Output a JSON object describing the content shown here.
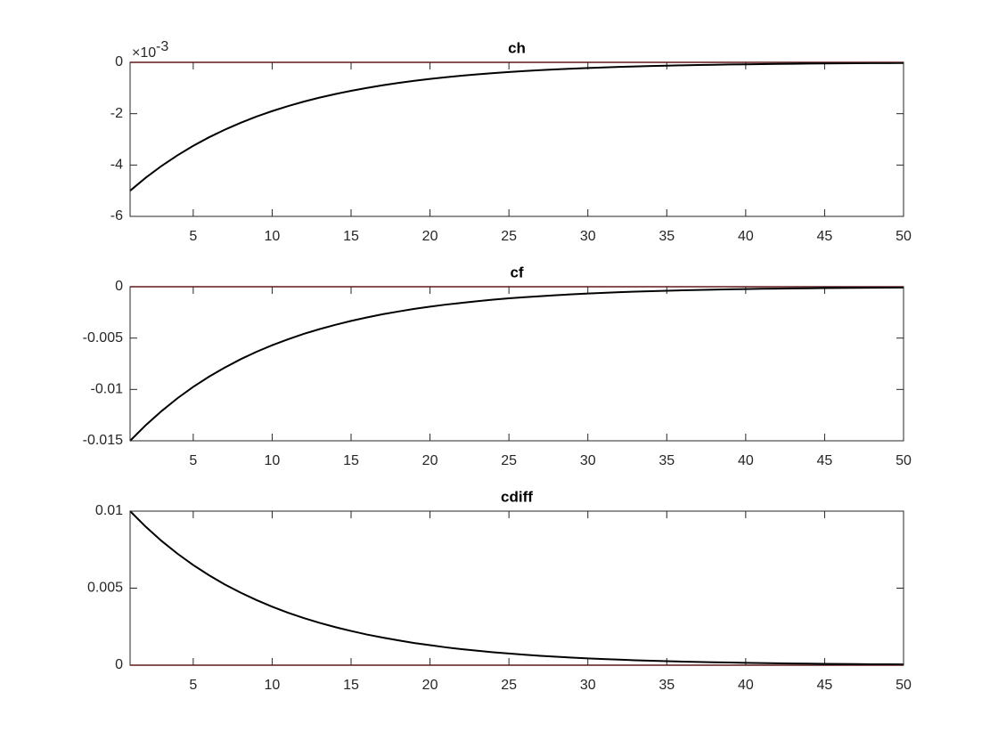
{
  "chart_data": [
    {
      "type": "line",
      "title": "ch",
      "y_multiplier_base": "×10",
      "y_multiplier_exponent": "-3",
      "x": [
        1,
        2,
        3,
        4,
        5,
        6,
        7,
        8,
        9,
        10,
        11,
        12,
        13,
        14,
        15,
        16,
        17,
        18,
        19,
        20,
        21,
        22,
        23,
        24,
        25,
        26,
        27,
        28,
        29,
        30,
        31,
        32,
        33,
        34,
        35,
        36,
        37,
        38,
        39,
        40,
        41,
        42,
        43,
        44,
        45,
        46,
        47,
        48,
        49,
        50
      ],
      "series": [
        {
          "color": "#000000",
          "values": [
            -5,
            -4.49,
            -4.032,
            -3.621,
            -3.252,
            -2.92,
            -2.622,
            -2.355,
            -2.115,
            -1.899,
            -1.705,
            -1.531,
            -1.375,
            -1.235,
            -1.109,
            -0.996,
            -0.894,
            -0.803,
            -0.721,
            -0.648,
            -0.582,
            -0.522,
            -0.469,
            -0.421,
            -0.378,
            -0.34,
            -0.305,
            -0.274,
            -0.246,
            -0.221,
            -0.199,
            -0.178,
            -0.16,
            -0.144,
            -0.129,
            -0.116,
            -0.104,
            -0.094,
            -0.084,
            -0.076,
            -0.068,
            -0.061,
            -0.055,
            -0.049,
            -0.044,
            -0.04,
            -0.036,
            -0.032,
            -0.029,
            -0.026
          ]
        }
      ],
      "reference_line": 0,
      "reference_color": "#cc0000",
      "xlim": [
        1,
        50
      ],
      "xticks": [
        5,
        10,
        15,
        20,
        25,
        30,
        35,
        40,
        45,
        50
      ],
      "ylim": [
        -6,
        0
      ],
      "yticks": [
        -6,
        -4,
        -2,
        0
      ]
    },
    {
      "type": "line",
      "title": "cf",
      "x": [
        1,
        2,
        3,
        4,
        5,
        6,
        7,
        8,
        9,
        10,
        11,
        12,
        13,
        14,
        15,
        16,
        17,
        18,
        19,
        20,
        21,
        22,
        23,
        24,
        25,
        26,
        27,
        28,
        29,
        30,
        31,
        32,
        33,
        34,
        35,
        36,
        37,
        38,
        39,
        40,
        41,
        42,
        43,
        44,
        45,
        46,
        47,
        48,
        49,
        50
      ],
      "series": [
        {
          "color": "#000000",
          "values": [
            -0.015,
            -0.01347,
            -0.0121,
            -0.01086,
            -0.00975,
            -0.00876,
            -0.00787,
            -0.00706,
            -0.00634,
            -0.0057,
            -0.00512,
            -0.00459,
            -0.00413,
            -0.00371,
            -0.00333,
            -0.00299,
            -0.00268,
            -0.00241,
            -0.00216,
            -0.00194,
            -0.00174,
            -0.00157,
            -0.00141,
            -0.00126,
            -0.00113,
            -0.00102,
            -0.00092,
            -0.00082,
            -0.00074,
            -0.00066,
            -0.0006,
            -0.00053,
            -0.00048,
            -0.00043,
            -0.00039,
            -0.00035,
            -0.00031,
            -0.00028,
            -0.00025,
            -0.00023,
            -0.0002,
            -0.00018,
            -0.00016,
            -0.00015,
            -0.00013,
            -0.00012,
            -0.00011,
            -0.0001,
            -9e-05,
            -8e-05
          ]
        }
      ],
      "reference_line": 0,
      "reference_color": "#cc0000",
      "xlim": [
        1,
        50
      ],
      "xticks": [
        5,
        10,
        15,
        20,
        25,
        30,
        35,
        40,
        45,
        50
      ],
      "ylim": [
        -0.015,
        0
      ],
      "yticks": [
        -0.015,
        -0.01,
        -0.005,
        0
      ]
    },
    {
      "type": "line",
      "title": "cdiff",
      "x": [
        1,
        2,
        3,
        4,
        5,
        6,
        7,
        8,
        9,
        10,
        11,
        12,
        13,
        14,
        15,
        16,
        17,
        18,
        19,
        20,
        21,
        22,
        23,
        24,
        25,
        26,
        27,
        28,
        29,
        30,
        31,
        32,
        33,
        34,
        35,
        36,
        37,
        38,
        39,
        40,
        41,
        42,
        43,
        44,
        45,
        46,
        47,
        48,
        49,
        50
      ],
      "series": [
        {
          "color": "#000000",
          "values": [
            0.01,
            0.00898,
            0.00806,
            0.00724,
            0.0065,
            0.00584,
            0.00524,
            0.00471,
            0.00423,
            0.0038,
            0.00341,
            0.00306,
            0.00275,
            0.00247,
            0.00222,
            0.00199,
            0.00179,
            0.00161,
            0.00144,
            0.0013,
            0.00116,
            0.00104,
            0.00094,
            0.00084,
            0.00076,
            0.00068,
            0.00061,
            0.00055,
            0.00049,
            0.00044,
            0.0004,
            0.00036,
            0.00032,
            0.00029,
            0.00026,
            0.00023,
            0.00021,
            0.00019,
            0.00017,
            0.00015,
            0.00014,
            0.00012,
            0.00011,
            0.0001,
            9e-05,
            8e-05,
            7e-05,
            6e-05,
            6e-05,
            5e-05
          ]
        }
      ],
      "reference_line": 0,
      "reference_color": "#cc0000",
      "xlim": [
        1,
        50
      ],
      "xticks": [
        5,
        10,
        15,
        20,
        25,
        30,
        35,
        40,
        45,
        50
      ],
      "ylim": [
        0,
        0.01
      ],
      "yticks": [
        0,
        0.005,
        0.01
      ]
    }
  ]
}
